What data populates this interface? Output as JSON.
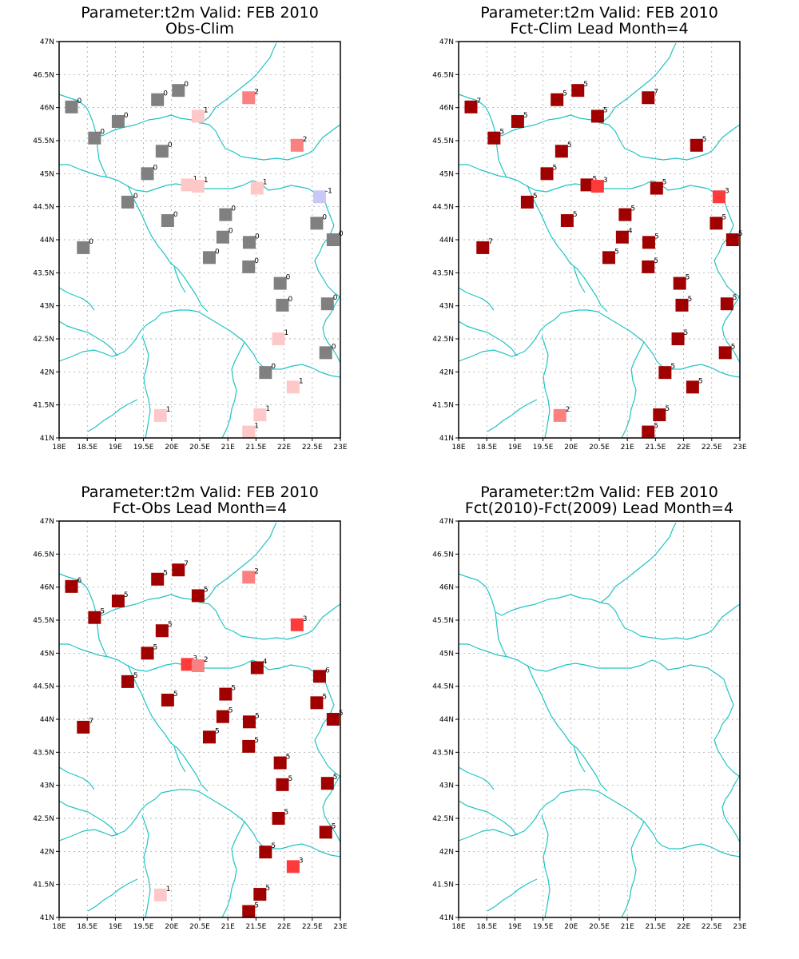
{
  "colors": {
    "coast": "#22c3c3",
    "grid": "#9a9a9a",
    "levels": {
      "-1": "#c8c8f8",
      "0": "#808080",
      "1": "#ffc8c8",
      "2": "#fb8080",
      "3": "#ff3a3a",
      "5": "#a00000",
      "7": "#a00000"
    }
  },
  "axes": {
    "lon_labels": [
      "18E",
      "18.5E",
      "19E",
      "19.5E",
      "20E",
      "20.5E",
      "21E",
      "21.5E",
      "22E",
      "22.5E",
      "23E"
    ],
    "lat_labels": [
      "41N",
      "41.5N",
      "42N",
      "42.5N",
      "43N",
      "43.5N",
      "44N",
      "44.5N",
      "45N",
      "45.5N",
      "46N",
      "46.5N",
      "47N"
    ],
    "lon_range": [
      18,
      23
    ],
    "lat_range": [
      41,
      47
    ]
  },
  "stations": [
    {
      "lon": 18.22,
      "lat": 46.01
    },
    {
      "lon": 18.63,
      "lat": 45.54
    },
    {
      "lon": 19.05,
      "lat": 45.79
    },
    {
      "lon": 19.75,
      "lat": 46.12
    },
    {
      "lon": 20.12,
      "lat": 46.26
    },
    {
      "lon": 20.47,
      "lat": 45.87
    },
    {
      "lon": 21.37,
      "lat": 46.15
    },
    {
      "lon": 19.83,
      "lat": 45.34
    },
    {
      "lon": 19.57,
      "lat": 45.0
    },
    {
      "lon": 20.28,
      "lat": 44.83
    },
    {
      "lon": 20.47,
      "lat": 44.81
    },
    {
      "lon": 21.52,
      "lat": 44.78
    },
    {
      "lon": 22.23,
      "lat": 45.43
    },
    {
      "lon": 22.63,
      "lat": 44.65
    },
    {
      "lon": 19.22,
      "lat": 44.57
    },
    {
      "lon": 19.93,
      "lat": 44.29
    },
    {
      "lon": 20.96,
      "lat": 44.38
    },
    {
      "lon": 20.91,
      "lat": 44.04
    },
    {
      "lon": 21.38,
      "lat": 43.96
    },
    {
      "lon": 18.43,
      "lat": 43.88
    },
    {
      "lon": 20.67,
      "lat": 43.73
    },
    {
      "lon": 21.37,
      "lat": 43.59
    },
    {
      "lon": 21.93,
      "lat": 43.34
    },
    {
      "lon": 21.97,
      "lat": 43.01
    },
    {
      "lon": 21.9,
      "lat": 42.5
    },
    {
      "lon": 22.58,
      "lat": 44.25
    },
    {
      "lon": 22.87,
      "lat": 44.0
    },
    {
      "lon": 22.77,
      "lat": 43.03
    },
    {
      "lon": 22.74,
      "lat": 42.29
    },
    {
      "lon": 21.67,
      "lat": 41.99
    },
    {
      "lon": 22.16,
      "lat": 41.77
    },
    {
      "lon": 19.8,
      "lat": 41.34
    },
    {
      "lon": 21.57,
      "lat": 41.35
    },
    {
      "lon": 21.37,
      "lat": 41.09
    }
  ],
  "panels": [
    {
      "title1": "Parameter:t2m Valid: FEB 2010",
      "title2": "Obs-Clim",
      "values": [
        "0",
        "0",
        "0",
        "0",
        "0",
        "1",
        "2",
        "0",
        "0",
        "1",
        "1",
        "1",
        "2",
        "-1",
        "0",
        "0",
        "0",
        "0",
        "0",
        "0",
        "0",
        "0",
        "0",
        "0",
        "1",
        "0",
        "0",
        "0",
        "0",
        "0",
        "1",
        "1",
        "1",
        "1"
      ]
    },
    {
      "title1": "Parameter:t2m Valid: FEB 2010",
      "title2": "Fct-Clim Lead Month=4",
      "values": [
        "7",
        "5",
        "5",
        "5",
        "5",
        "5",
        "7",
        "5",
        "5",
        "5",
        "3",
        "5",
        "5",
        "3",
        "5",
        "5",
        "5",
        "4",
        "5",
        "7",
        "5",
        "5",
        "5",
        "5",
        "5",
        "5",
        "5",
        "5",
        "5",
        "5",
        "5",
        "2",
        "5",
        "5"
      ]
    },
    {
      "title1": "Parameter:t2m Valid: FEB 2010",
      "title2": "Fct-Obs Lead Month=4",
      "values": [
        "6",
        "5",
        "5",
        "5",
        "7",
        "5",
        "2",
        "5",
        "5",
        "3",
        "2",
        "4",
        "3",
        "6",
        "5",
        "5",
        "5",
        "5",
        "5",
        "7",
        "5",
        "5",
        "5",
        "5",
        "5",
        "5",
        "5",
        "5",
        "5",
        "5",
        "3",
        "1",
        "5",
        "5"
      ]
    },
    {
      "title1": "Parameter:t2m Valid: FEB 2010",
      "title2": "Fct(2010)-Fct(2009) Lead Month=4",
      "values": []
    }
  ]
}
